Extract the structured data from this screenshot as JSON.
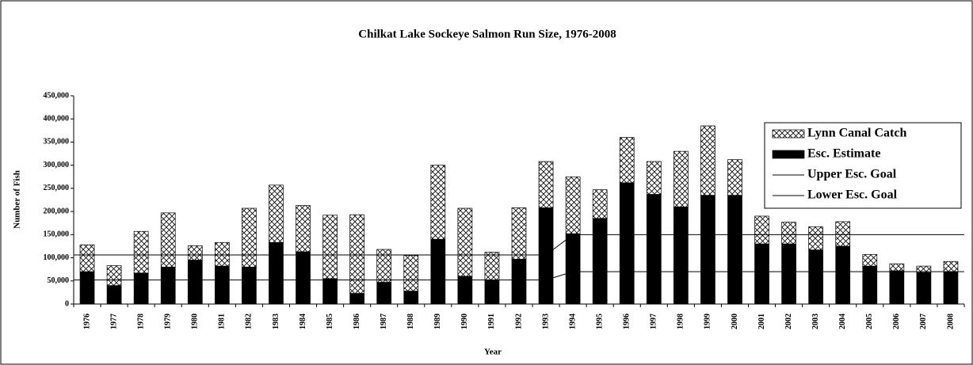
{
  "chart_data": {
    "type": "bar",
    "title": "Chilkat Lake Sockeye Salmon Run Size, 1976-2008",
    "x_label": "Year",
    "y_label": "Number of Fish",
    "categories": [
      "1976",
      "1977",
      "1978",
      "1979",
      "1980",
      "1981",
      "1982",
      "1983",
      "1984",
      "1985",
      "1986",
      "1987",
      "1988",
      "1989",
      "1990",
      "1991",
      "1992",
      "1993",
      "1994",
      "1995",
      "1996",
      "1997",
      "1998",
      "1999",
      "2000",
      "2001",
      "2002",
      "2003",
      "2004",
      "2005",
      "2006",
      "2007",
      "2008"
    ],
    "series": [
      {
        "name": "Lynn Canal Catch",
        "kind": "bar",
        "pattern": "crosshatch",
        "color": "#000000",
        "values": [
          58000,
          43000,
          90000,
          117000,
          31000,
          51000,
          127000,
          124000,
          100000,
          137000,
          170000,
          71000,
          77000,
          160000,
          147000,
          60000,
          111000,
          100000,
          123000,
          62000,
          98000,
          71000,
          120000,
          150000,
          77000,
          60000,
          47000,
          50000,
          53000,
          25000,
          15000,
          14000,
          22000
        ]
      },
      {
        "name": "Esc. Estimate",
        "kind": "bar",
        "pattern": "solid",
        "color": "#000000",
        "values": [
          70000,
          40000,
          67000,
          80000,
          95000,
          82000,
          80000,
          133000,
          113000,
          55000,
          23000,
          47000,
          28000,
          140000,
          60000,
          52000,
          97000,
          208000,
          152000,
          185000,
          262000,
          237000,
          210000,
          235000,
          235000,
          130000,
          130000,
          117000,
          125000,
          82000,
          72000,
          68000,
          70000
        ]
      },
      {
        "name": "Upper Esc. Goal",
        "kind": "line",
        "color": "#000000",
        "values": [
          106000,
          106000,
          106000,
          106000,
          106000,
          106000,
          106000,
          106000,
          106000,
          106000,
          106000,
          106000,
          106000,
          106000,
          106000,
          106000,
          106000,
          106000,
          150000,
          150000,
          150000,
          150000,
          150000,
          150000,
          150000,
          150000,
          150000,
          150000,
          150000,
          150000,
          150000,
          150000,
          150000
        ]
      },
      {
        "name": "Lower Esc. Goal",
        "kind": "line",
        "color": "#000000",
        "values": [
          52000,
          52000,
          52000,
          52000,
          52000,
          52000,
          52000,
          52000,
          52000,
          52000,
          52000,
          52000,
          52000,
          52000,
          52000,
          52000,
          52000,
          52000,
          70000,
          70000,
          70000,
          70000,
          70000,
          70000,
          70000,
          70000,
          70000,
          70000,
          70000,
          70000,
          70000,
          70000,
          70000
        ]
      }
    ],
    "ylim": [
      0,
      450000
    ],
    "yticks": [
      0,
      {
        "value": 50000,
        "label": "50,000"
      },
      {
        "value": 100000,
        "label": "100,000"
      },
      {
        "value": 150000,
        "label": "150,000"
      },
      {
        "value": 200000,
        "label": "200,000"
      },
      {
        "value": 250000,
        "label": "250,000"
      },
      {
        "value": 300000,
        "label": "300,000"
      },
      {
        "value": 350000,
        "label": "350,000"
      },
      {
        "value": 400000,
        "label": "400,000"
      },
      {
        "value": 450000,
        "label": "450,000"
      }
    ],
    "grid": false,
    "legend": "upper right"
  }
}
